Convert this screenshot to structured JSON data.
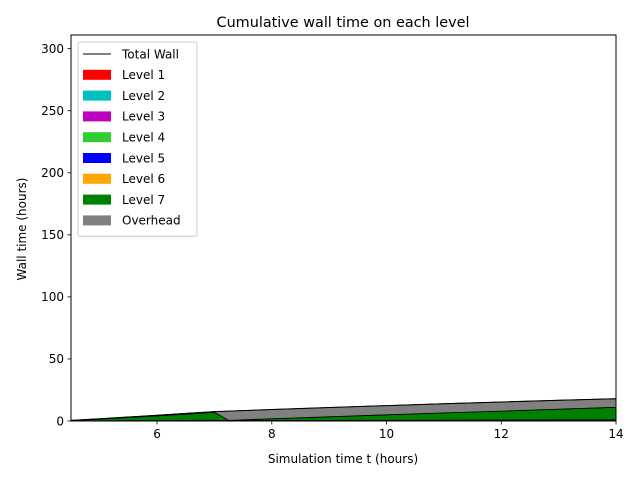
{
  "chart_data": {
    "type": "area",
    "title": "Cumulative wall time on each level",
    "xlabel": "Simulation time t (hours)",
    "ylabel": "Wall time (hours)",
    "xlim": [
      4.5,
      14
    ],
    "ylim": [
      0,
      311
    ],
    "x_ticks": [
      6,
      8,
      10,
      12,
      14
    ],
    "y_ticks": [
      0,
      50,
      100,
      150,
      200,
      250,
      300
    ],
    "grid": false,
    "legend": "upper-left",
    "stacked": true,
    "total": {
      "name": "Total Wall",
      "color": "#000000",
      "x": [
        4.5,
        5.0,
        5.5,
        6.0,
        6.5,
        7.0,
        7.25,
        8.0,
        9.0,
        10.0,
        11.0,
        12.0,
        13.0,
        14.0
      ],
      "y": [
        0.5,
        1.8,
        3.2,
        4.6,
        6.1,
        7.6,
        8.0,
        9.3,
        10.9,
        12.4,
        13.9,
        15.3,
        16.7,
        18.0
      ]
    },
    "x": [
      4.5,
      5.0,
      5.5,
      6.0,
      6.5,
      7.0,
      7.25,
      8.0,
      9.0,
      10.0,
      11.0,
      12.0,
      13.0,
      14.0
    ],
    "series": [
      {
        "name": "Level 1",
        "color": "#ff0000",
        "values": [
          0.1,
          0.2,
          0.3,
          0.4,
          0.5,
          0.6,
          0.3,
          0.4,
          0.5,
          0.6,
          0.7,
          0.8,
          0.9,
          1.0
        ]
      },
      {
        "name": "Level 2",
        "color": "#00bfbf",
        "values": [
          0,
          0,
          0,
          0,
          0,
          0,
          0,
          0,
          0,
          0,
          0,
          0,
          0,
          0
        ]
      },
      {
        "name": "Level 3",
        "color": "#bf00bf",
        "values": [
          0,
          0,
          0,
          0,
          0,
          0,
          0,
          0,
          0,
          0,
          0,
          0,
          0,
          0
        ]
      },
      {
        "name": "Level 4",
        "color": "#32cd32",
        "values": [
          0,
          0,
          0,
          0,
          0,
          0,
          0,
          0,
          0,
          0,
          0,
          0,
          0,
          0
        ]
      },
      {
        "name": "Level 5",
        "color": "#0000ff",
        "values": [
          0,
          0,
          0,
          0,
          0,
          0,
          0,
          0,
          0,
          0,
          0,
          0,
          0,
          0
        ]
      },
      {
        "name": "Level 6",
        "color": "#ffa500",
        "values": [
          0,
          0,
          0,
          0,
          0,
          0,
          0,
          0,
          0,
          0,
          0,
          0,
          0,
          0
        ]
      },
      {
        "name": "Level 7",
        "color": "#008000",
        "values": [
          0.3,
          1.3,
          2.5,
          3.7,
          5.0,
          6.4,
          0.2,
          1.4,
          2.9,
          4.4,
          5.8,
          7.2,
          8.6,
          10.0
        ]
      },
      {
        "name": "Overhead",
        "color": "#808080",
        "values": [
          0.1,
          0.3,
          0.4,
          0.5,
          0.6,
          0.6,
          7.5,
          7.5,
          7.5,
          7.4,
          7.4,
          7.3,
          7.2,
          7.0
        ]
      }
    ]
  }
}
